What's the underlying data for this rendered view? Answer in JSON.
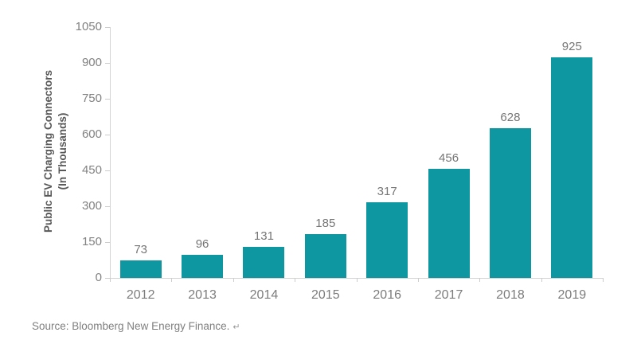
{
  "chart_data": {
    "type": "bar",
    "title": "",
    "categories": [
      "2012",
      "2013",
      "2014",
      "2015",
      "2016",
      "2017",
      "2018",
      "2019"
    ],
    "values": [
      73,
      96,
      131,
      185,
      317,
      456,
      628,
      925
    ],
    "ylabel_line1": "Public EV Charging Connectors",
    "ylabel_line2": "(In Thousands)",
    "xlabel": "",
    "yticks": [
      0,
      150,
      300,
      450,
      600,
      750,
      900,
      1050
    ],
    "ylim": [
      0,
      1050
    ],
    "grid": false,
    "legend": null,
    "bar_color": "#0f97a1"
  },
  "source": {
    "text": "Source: Bloomberg New Energy Finance.",
    "return_mark": "↵"
  },
  "colors": {
    "bar": "#0f97a1",
    "tick_label": "#828282",
    "data_label": "#767676",
    "category_label": "#7c7c7c",
    "axis_line": "#d4d4d4",
    "axis_title": "#585858",
    "source_text": "#7f7f7f"
  }
}
